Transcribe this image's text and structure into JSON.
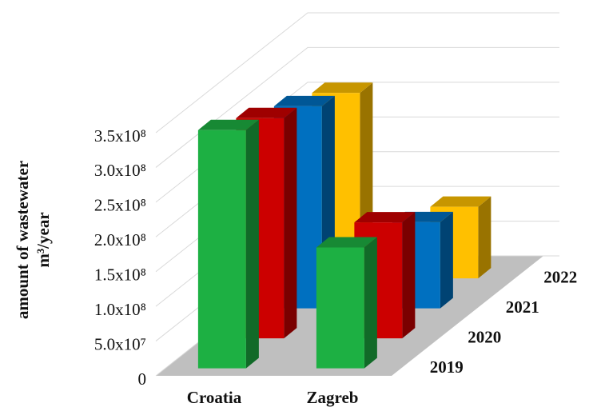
{
  "chart_data": {
    "type": "bar3d",
    "ylabel": [
      "amount of wastewater",
      "m³/year"
    ],
    "categories": [
      "Croatia",
      "Zagreb"
    ],
    "series": [
      {
        "name": "2019",
        "color": "#1db043",
        "values": [
          343000000,
          174000000
        ]
      },
      {
        "name": "2020",
        "color": "#cc0000",
        "values": [
          317000000,
          167000000
        ]
      },
      {
        "name": "2021",
        "color": "#0070c0",
        "values": [
          291000000,
          124000000
        ]
      },
      {
        "name": "2022",
        "color": "#ffc000",
        "values": [
          267000000,
          103000000
        ]
      }
    ],
    "ylim": [
      0,
      350000000
    ],
    "yticks": [
      0,
      {
        "value": 50000000,
        "label": "5.0x10⁷"
      },
      {
        "value": 100000000,
        "label": "1.0x10⁸"
      },
      {
        "value": 150000000,
        "label": "1.5x10⁸"
      },
      {
        "value": 200000000,
        "label": "2.0x10⁸"
      },
      {
        "value": 250000000,
        "label": "2.5x10⁸"
      },
      {
        "value": 300000000,
        "label": "3.0x10⁸"
      },
      {
        "value": 350000000,
        "label": "3.5x10⁸"
      }
    ],
    "grid": true
  }
}
